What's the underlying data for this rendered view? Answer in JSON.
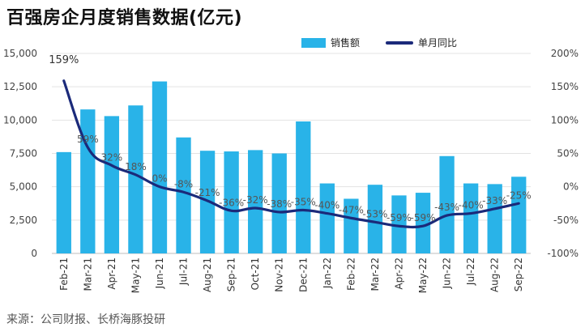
{
  "title": "百强房企月度销售数据(亿元)",
  "source": "来源：公司财报、长桥海豚投研",
  "colors": {
    "bar": "#29B3E8",
    "line": "#1B2A7A"
  },
  "chart_data": {
    "type": "bar",
    "categories": [
      "Feb-21",
      "Mar-21",
      "Apr-21",
      "May-21",
      "Jun-21",
      "Jul-21",
      "Aug-21",
      "Sep-21",
      "Oct-21",
      "Nov-21",
      "Dec-21",
      "Jan-22",
      "Feb-22",
      "Mar-22",
      "Apr-22",
      "May-22",
      "Jun-22",
      "Jul-22",
      "Aug-22",
      "Sep-22"
    ],
    "series": [
      {
        "name": "销售额",
        "type": "bar",
        "axis": "left",
        "values": [
          7600,
          10800,
          10300,
          11100,
          12900,
          8700,
          7700,
          7650,
          7750,
          7500,
          9900,
          5250,
          4100,
          5150,
          4350,
          4550,
          7300,
          5250,
          5200,
          5750
        ]
      },
      {
        "name": "单月同比",
        "type": "line",
        "axis": "right",
        "values": [
          159,
          59,
          32,
          18,
          0,
          -8,
          -21,
          -36,
          -32,
          -38,
          -35,
          -40,
          -47,
          -53,
          -59,
          -59,
          -43,
          -40,
          -33,
          -25
        ]
      }
    ],
    "data_labels": [
      "159%",
      "59%",
      "32%",
      "18%",
      "0%",
      "-8%",
      "-21%",
      "-36%",
      "-32%",
      "-38%",
      "-35%",
      "-40%",
      "-47%",
      "-53%",
      "-59%",
      "-59%",
      "-43%",
      "-40%",
      "-33%",
      "-25%"
    ],
    "ylim_left": [
      0,
      15000
    ],
    "yticks_left": [
      "0",
      "2,500",
      "5,000",
      "7,500",
      "10,000",
      "12,500",
      "15,000"
    ],
    "ylim_right": [
      -100,
      200
    ],
    "yticks_right": [
      "-100%",
      "-50%",
      "0%",
      "50%",
      "100%",
      "150%",
      "200%"
    ],
    "legend_position": "top-right",
    "grid": true
  }
}
